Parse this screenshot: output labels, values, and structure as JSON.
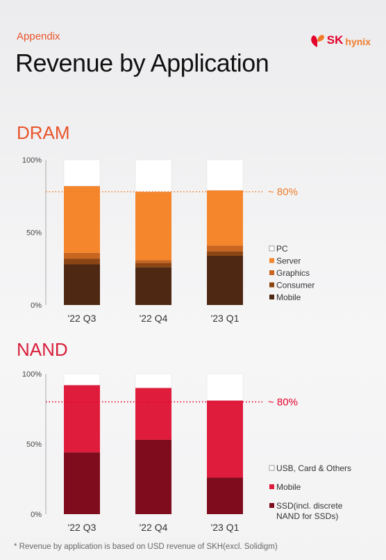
{
  "header": {
    "kicker": "Appendix",
    "title": "Revenue by Application",
    "logo_text": "SK",
    "logo_sub": "hynix"
  },
  "colors": {
    "dram_accent": "#f07c2a",
    "nand_accent": "#e4002b"
  },
  "chart_data": [
    {
      "type": "bar",
      "stacked": true,
      "title": "DRAM",
      "categories": [
        "'22 Q3",
        "'22 Q4",
        "'23 Q1"
      ],
      "yticks": [
        "0%",
        "50%",
        "100%"
      ],
      "ylim": [
        0,
        100
      ],
      "reference_line": {
        "value": 78,
        "label": "~ 80%"
      },
      "legend_position": "right",
      "series": [
        {
          "name": "Mobile",
          "color": "#4e2812",
          "values": [
            28,
            26,
            34
          ]
        },
        {
          "name": "Consumer",
          "color": "#8b4513",
          "values": [
            4,
            3,
            3
          ]
        },
        {
          "name": "Graphics",
          "color": "#c8651f",
          "values": [
            4,
            2,
            4
          ]
        },
        {
          "name": "Server",
          "color": "#f5862b",
          "values": [
            46,
            47,
            38
          ]
        },
        {
          "name": "PC",
          "color": "#ffffff",
          "values": [
            18,
            22,
            21
          ]
        }
      ]
    },
    {
      "type": "bar",
      "stacked": true,
      "title": "NAND",
      "categories": [
        "'22 Q3",
        "'22 Q4",
        "'23 Q1"
      ],
      "yticks": [
        "0%",
        "50%",
        "100%"
      ],
      "ylim": [
        0,
        100
      ],
      "reference_line": {
        "value": 80,
        "label": "~ 80%"
      },
      "legend_position": "right",
      "series": [
        {
          "name": "SSD(incl. discrete NAND for SSDs)",
          "color": "#7e0c1d",
          "values": [
            44,
            53,
            26
          ]
        },
        {
          "name": "Mobile",
          "color": "#e01c3c",
          "values": [
            48,
            37,
            55
          ]
        },
        {
          "name": "USB, Card & Others",
          "color": "#ffffff",
          "values": [
            8,
            10,
            19
          ]
        }
      ]
    }
  ],
  "footnote": "* Revenue by application is based on USD revenue of SKH(excl. Solidigm)"
}
